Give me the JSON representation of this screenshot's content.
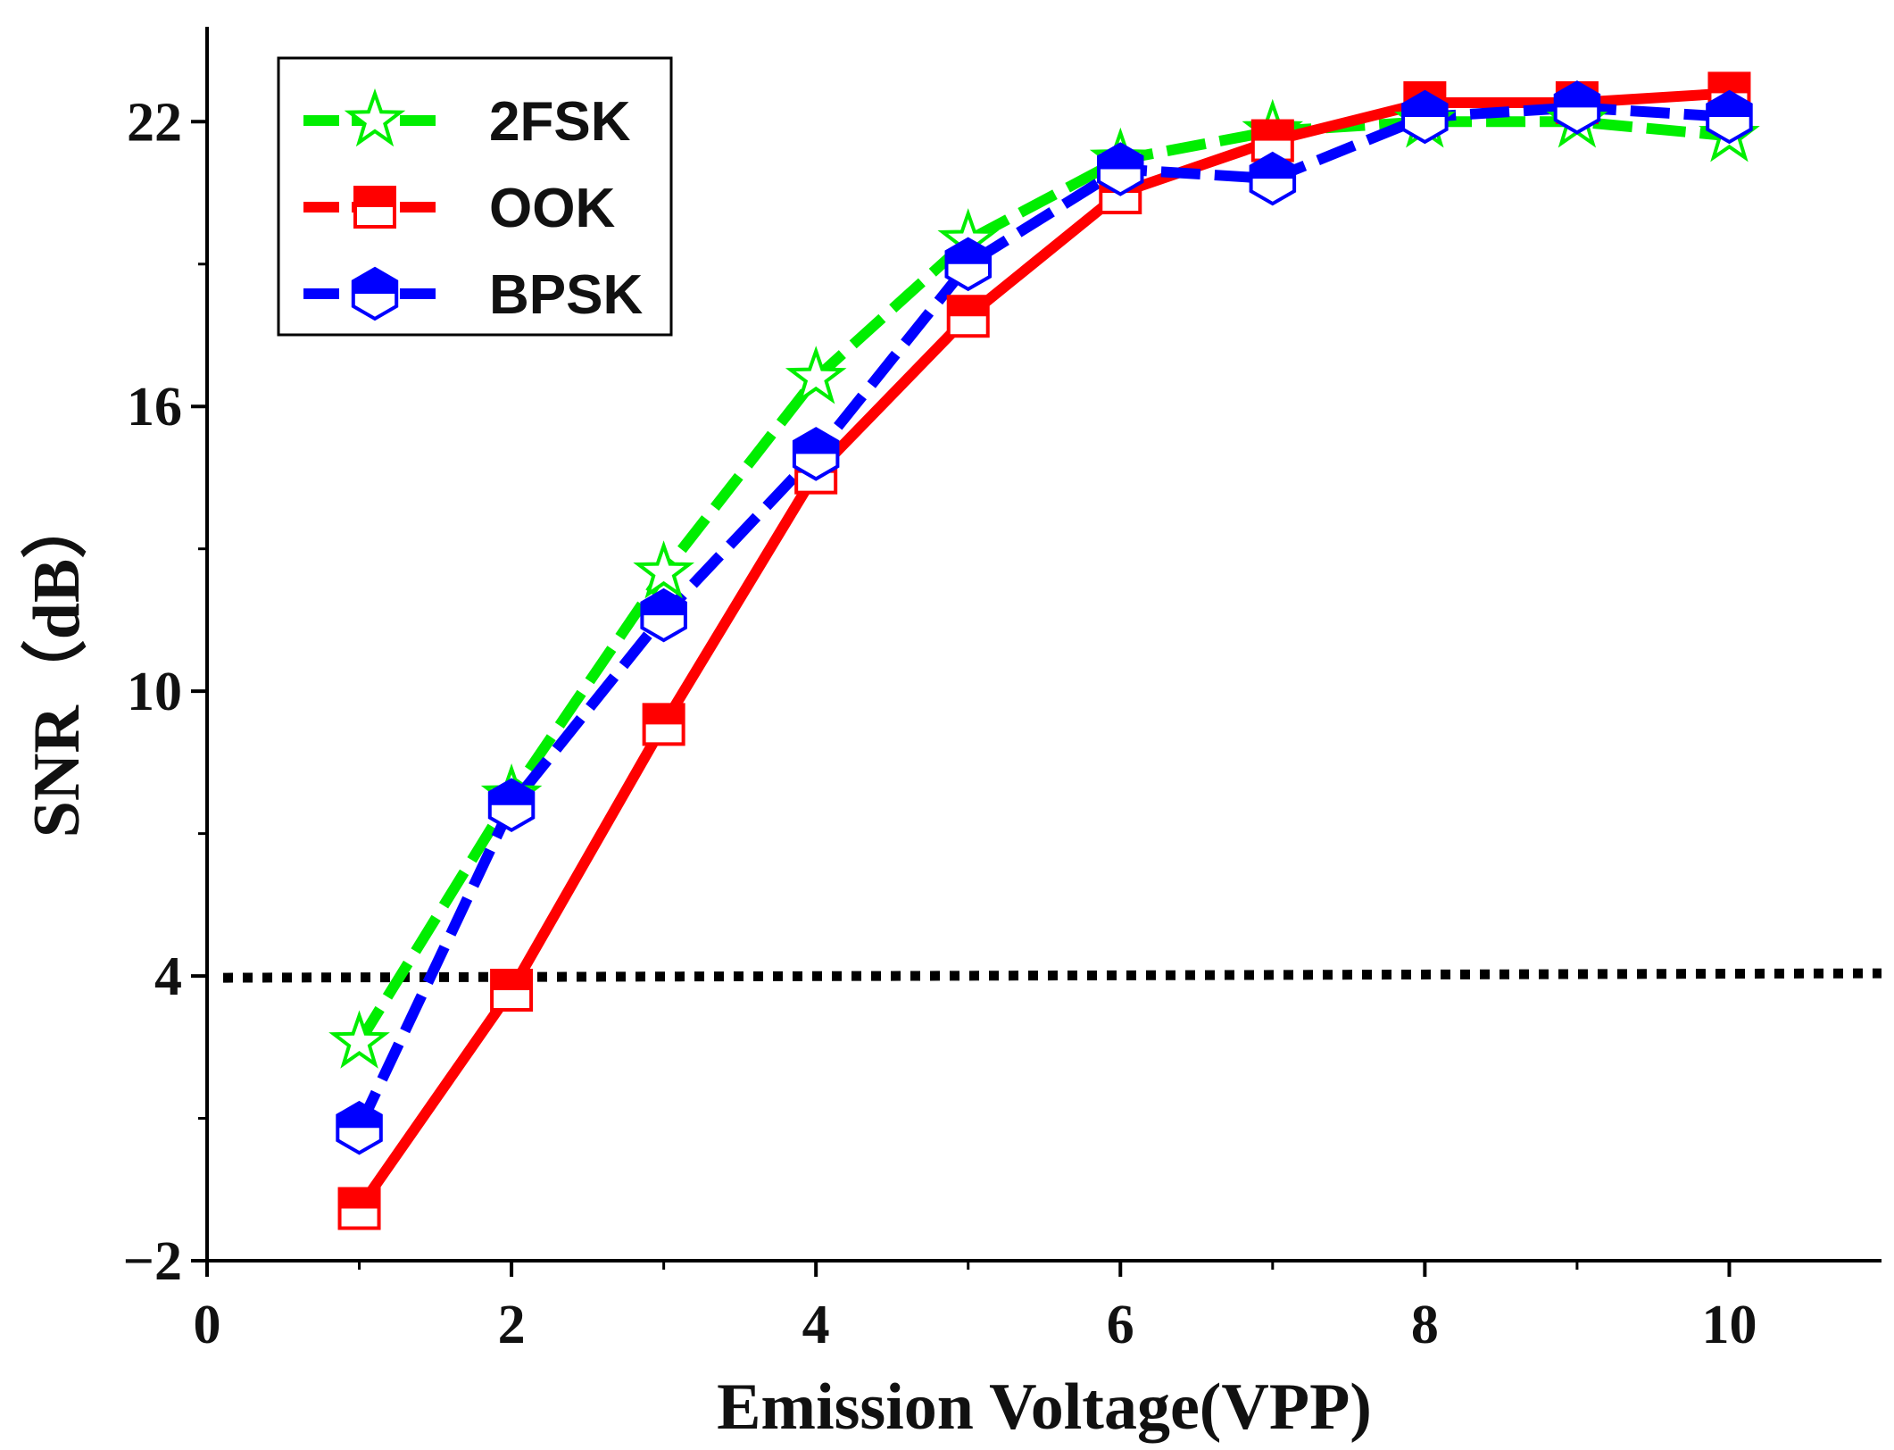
{
  "chart_data": {
    "type": "line",
    "xlabel": "Emission Voltage(VPP)",
    "ylabel": "SNR（dB）",
    "xlim": [
      0,
      11
    ],
    "ylim": [
      -2,
      24
    ],
    "x_ticks": [
      0,
      2,
      4,
      6,
      8,
      10
    ],
    "y_ticks": [
      -2,
      4,
      10,
      16,
      22
    ],
    "x_tick_labels": [
      "0",
      "2",
      "4",
      "6",
      "8",
      "10"
    ],
    "y_tick_labels": [
      "−2",
      "4",
      "10",
      "16",
      "22"
    ],
    "legend_position": "top-left",
    "grid": false,
    "x": [
      1,
      2,
      3,
      4,
      5,
      6,
      7,
      8,
      9,
      10
    ],
    "series": [
      {
        "name": "2FSK",
        "color": "#00ee00",
        "marker": "star",
        "values": [
          2.6,
          7.8,
          12.5,
          16.6,
          19.5,
          21.2,
          21.8,
          22.0,
          22.0,
          21.7
        ]
      },
      {
        "name": "OOK",
        "color": "#ff0000",
        "marker": "square",
        "values": [
          -0.9,
          3.7,
          9.3,
          14.6,
          17.9,
          20.5,
          21.6,
          22.4,
          22.4,
          22.6
        ]
      },
      {
        "name": "BPSK",
        "color": "#0000ff",
        "marker": "hexagon",
        "values": [
          0.8,
          7.6,
          11.6,
          15.0,
          19.0,
          21.0,
          20.8,
          22.1,
          22.3,
          22.1
        ]
      }
    ],
    "reference_line": {
      "y": 4,
      "color": "#000000",
      "style": "dotted"
    }
  }
}
